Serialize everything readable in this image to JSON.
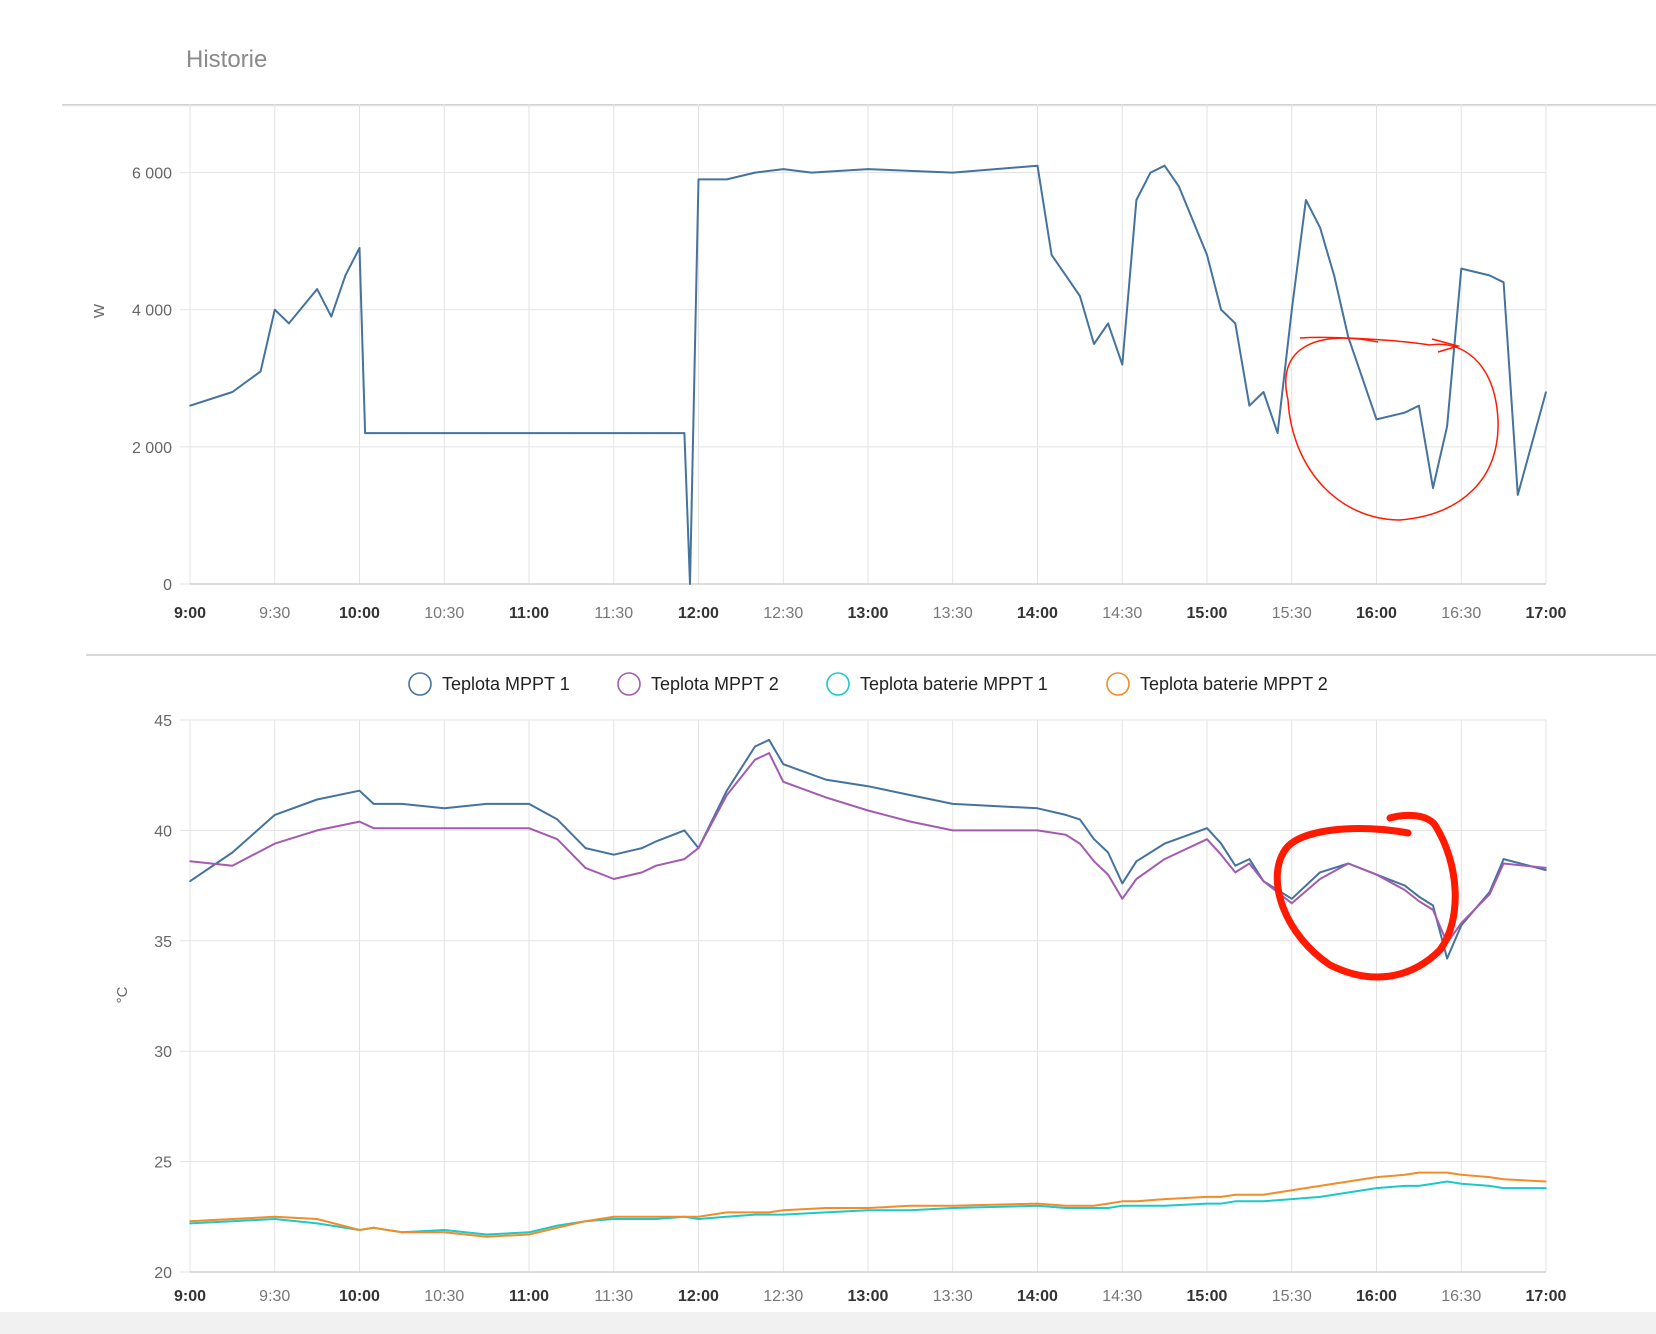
{
  "page": {
    "title": "Historie"
  },
  "colors": {
    "power": "#44739e",
    "mppt1": "#44739e",
    "mppt2": "#a35bb0",
    "batt1": "#1cc8c8",
    "batt2": "#f28c28",
    "annotation": "#ff1a00",
    "grid": "#e3e3e3",
    "axis_text": "#666666"
  },
  "x_ticks": [
    {
      "label": "9:00",
      "bold": true
    },
    {
      "label": "9:30",
      "bold": false
    },
    {
      "label": "10:00",
      "bold": true
    },
    {
      "label": "10:30",
      "bold": false
    },
    {
      "label": "11:00",
      "bold": true
    },
    {
      "label": "11:30",
      "bold": false
    },
    {
      "label": "12:00",
      "bold": true
    },
    {
      "label": "12:30",
      "bold": false
    },
    {
      "label": "13:00",
      "bold": true
    },
    {
      "label": "13:30",
      "bold": false
    },
    {
      "label": "14:00",
      "bold": true
    },
    {
      "label": "14:30",
      "bold": false
    },
    {
      "label": "15:00",
      "bold": true
    },
    {
      "label": "15:30",
      "bold": false
    },
    {
      "label": "16:00",
      "bold": true
    },
    {
      "label": "16:30",
      "bold": false
    },
    {
      "label": "17:00",
      "bold": true
    }
  ],
  "chart_data": [
    {
      "type": "line",
      "ylabel": "W",
      "ylim": [
        0,
        7000
      ],
      "y_ticks": [
        "0",
        "2 000",
        "4 000",
        "6 000"
      ],
      "y_tick_values": [
        0,
        2000,
        4000,
        6000
      ],
      "grid": true,
      "series": [
        {
          "x": [
            "9:00",
            "9:15",
            "9:25",
            "9:30",
            "9:35",
            "9:45",
            "9:50",
            "9:55",
            "10:00",
            "10:02",
            "10:05",
            "10:15",
            "10:30",
            "10:45",
            "11:00",
            "11:15",
            "11:30",
            "11:35",
            "11:40",
            "11:45",
            "11:50",
            "11:55",
            "11:57",
            "12:00",
            "12:10",
            "12:20",
            "12:30",
            "12:40",
            "13:00",
            "13:30",
            "14:00",
            "14:05",
            "14:10",
            "14:15",
            "14:20",
            "14:25",
            "14:30",
            "14:35",
            "14:40",
            "14:45",
            "14:50",
            "15:00",
            "15:05",
            "15:10",
            "15:15",
            "15:20",
            "15:25",
            "15:30",
            "15:35",
            "15:40",
            "15:45",
            "15:50",
            "16:00",
            "16:10",
            "16:15",
            "16:20",
            "16:25",
            "16:30",
            "16:40",
            "16:45",
            "16:50",
            "17:00"
          ],
          "values": [
            2600,
            2800,
            3100,
            4000,
            3800,
            4300,
            3900,
            4500,
            4900,
            2200,
            2200,
            2200,
            2200,
            2200,
            2200,
            2200,
            2200,
            2200,
            2200,
            2200,
            2200,
            2200,
            0,
            5900,
            5900,
            6000,
            6050,
            6000,
            6050,
            6000,
            6100,
            4800,
            4500,
            4200,
            3500,
            3800,
            3200,
            5600,
            6000,
            6100,
            5800,
            4800,
            4000,
            3800,
            2600,
            2800,
            2200,
            4000,
            5600,
            5200,
            4500,
            3600,
            2400,
            2500,
            2600,
            1400,
            2300,
            4600,
            4500,
            4400,
            1300,
            2800
          ]
        }
      ],
      "annotation": "hand-drawn red circle around 15:30–16:45"
    },
    {
      "type": "line",
      "ylabel": "°C",
      "ylim": [
        20,
        45
      ],
      "y_ticks": [
        "20",
        "25",
        "30",
        "35",
        "40",
        "45"
      ],
      "y_tick_values": [
        20,
        25,
        30,
        35,
        40,
        45
      ],
      "grid": true,
      "legend": [
        "Teplota MPPT 1",
        "Teplota MPPT 2",
        "Teplota baterie MPPT 1",
        "Teplota baterie MPPT 2"
      ],
      "legend_position": "top",
      "x": [
        "9:00",
        "9:15",
        "9:30",
        "9:45",
        "10:00",
        "10:05",
        "10:15",
        "10:30",
        "10:45",
        "11:00",
        "11:10",
        "11:20",
        "11:30",
        "11:40",
        "11:45",
        "11:55",
        "12:00",
        "12:10",
        "12:20",
        "12:25",
        "12:30",
        "12:45",
        "13:00",
        "13:15",
        "13:30",
        "14:00",
        "14:10",
        "14:15",
        "14:20",
        "14:25",
        "14:30",
        "14:35",
        "14:45",
        "15:00",
        "15:05",
        "15:10",
        "15:15",
        "15:20",
        "15:30",
        "15:40",
        "15:50",
        "16:00",
        "16:10",
        "16:15",
        "16:20",
        "16:25",
        "16:30",
        "16:40",
        "16:45",
        "17:00"
      ],
      "series": [
        {
          "name": "Teplota MPPT 1",
          "values": [
            37.7,
            39.0,
            40.7,
            41.4,
            41.8,
            41.2,
            41.2,
            41.0,
            41.2,
            41.2,
            40.5,
            39.2,
            38.9,
            39.2,
            39.5,
            40.0,
            39.2,
            41.8,
            43.8,
            44.1,
            43.0,
            42.3,
            42.0,
            41.6,
            41.2,
            41.0,
            40.7,
            40.5,
            39.6,
            39.0,
            37.6,
            38.6,
            39.4,
            40.1,
            39.4,
            38.4,
            38.7,
            37.7,
            36.9,
            38.1,
            38.5,
            38.0,
            37.5,
            37.0,
            36.6,
            34.2,
            35.7,
            37.2,
            38.7,
            38.2
          ]
        },
        {
          "name": "Teplota MPPT 2",
          "values": [
            38.6,
            38.4,
            39.4,
            40.0,
            40.4,
            40.1,
            40.1,
            40.1,
            40.1,
            40.1,
            39.6,
            38.3,
            37.8,
            38.1,
            38.4,
            38.7,
            39.2,
            41.6,
            43.2,
            43.5,
            42.2,
            41.5,
            40.9,
            40.4,
            40.0,
            40.0,
            39.8,
            39.4,
            38.6,
            38.0,
            36.9,
            37.8,
            38.7,
            39.6,
            38.9,
            38.1,
            38.5,
            37.7,
            36.7,
            37.8,
            38.5,
            38.0,
            37.3,
            36.8,
            36.4,
            34.9,
            35.8,
            37.1,
            38.5,
            38.3
          ]
        },
        {
          "name": "Teplota baterie MPPT 1",
          "values": [
            22.2,
            22.3,
            22.4,
            22.2,
            21.9,
            22.0,
            21.8,
            21.9,
            21.7,
            21.8,
            22.1,
            22.3,
            22.4,
            22.4,
            22.4,
            22.5,
            22.4,
            22.5,
            22.6,
            22.6,
            22.6,
            22.7,
            22.8,
            22.8,
            22.9,
            23.0,
            22.9,
            22.9,
            22.9,
            22.9,
            23.0,
            23.0,
            23.0,
            23.1,
            23.1,
            23.2,
            23.2,
            23.2,
            23.3,
            23.4,
            23.6,
            23.8,
            23.9,
            23.9,
            24.0,
            24.1,
            24.0,
            23.9,
            23.8,
            23.8
          ]
        },
        {
          "name": "Teplota baterie MPPT 2",
          "values": [
            22.3,
            22.4,
            22.5,
            22.4,
            21.9,
            22.0,
            21.8,
            21.8,
            21.6,
            21.7,
            22.0,
            22.3,
            22.5,
            22.5,
            22.5,
            22.5,
            22.5,
            22.7,
            22.7,
            22.7,
            22.8,
            22.9,
            22.9,
            23.0,
            23.0,
            23.1,
            23.0,
            23.0,
            23.0,
            23.1,
            23.2,
            23.2,
            23.3,
            23.4,
            23.4,
            23.5,
            23.5,
            23.5,
            23.7,
            23.9,
            24.1,
            24.3,
            24.4,
            24.5,
            24.5,
            24.5,
            24.4,
            24.3,
            24.2,
            24.1
          ]
        }
      ],
      "annotation": "hand-drawn red circle around 15:30–16:30"
    }
  ]
}
